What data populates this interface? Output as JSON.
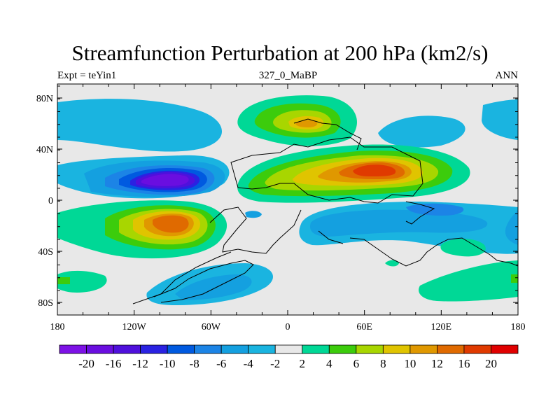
{
  "title": "Streamfunction Perturbation at 200 hPa (km2/s)",
  "left_label": "Expt = teYin1",
  "center_label": "327_0_MaBP",
  "right_label": "ANN",
  "y_ticks": [
    "80N",
    "40N",
    "0",
    "40S",
    "80S"
  ],
  "x_ticks": [
    "180",
    "120W",
    "60W",
    "0",
    "60E",
    "120E",
    "180"
  ],
  "colorbar": {
    "colors": [
      "#7d12e6",
      "#6a0ee0",
      "#4f10dc",
      "#2a22e2",
      "#005ae0",
      "#1c84e6",
      "#14a0e0",
      "#1ab4e0",
      "#e8e8e8",
      "#00d896",
      "#3ccc0c",
      "#a8d600",
      "#e0c400",
      "#e09800",
      "#e06a00",
      "#e03a00",
      "#e00000"
    ],
    "labels": [
      "-20",
      "-16",
      "-12",
      "-10",
      "-8",
      "-6",
      "-4",
      "-2",
      "2",
      "4",
      "6",
      "8",
      "10",
      "12",
      "16",
      "20"
    ]
  }
}
